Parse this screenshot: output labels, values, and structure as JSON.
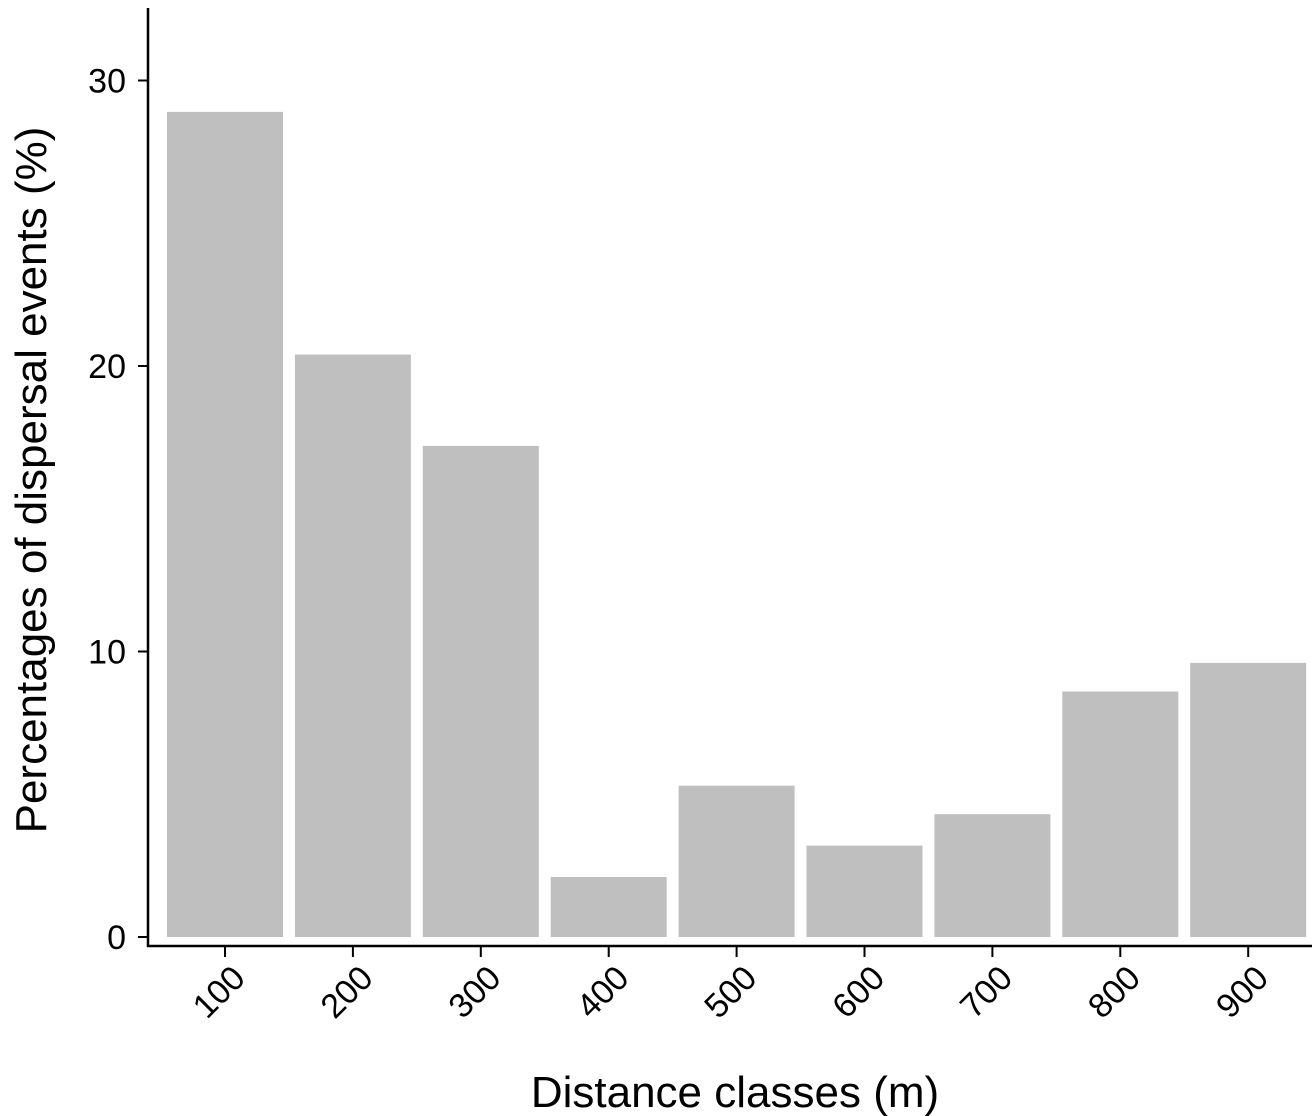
{
  "chart_data": {
    "type": "bar",
    "title": "",
    "xlabel": "Distance classes (m)",
    "ylabel": "Percentages of dispersal events (%)",
    "categories": [
      "100",
      "200",
      "300",
      "400",
      "500",
      "600",
      "700",
      "800",
      "900"
    ],
    "values": [
      28.9,
      20.4,
      17.2,
      2.1,
      5.3,
      3.2,
      4.3,
      8.6,
      9.6
    ],
    "ylim": [
      0,
      32.5
    ],
    "yticks": [
      "0",
      "10",
      "20",
      "30"
    ],
    "grid": false,
    "legend": "none",
    "bar_color": "#bfbfbf",
    "axis_color": "#000000"
  }
}
